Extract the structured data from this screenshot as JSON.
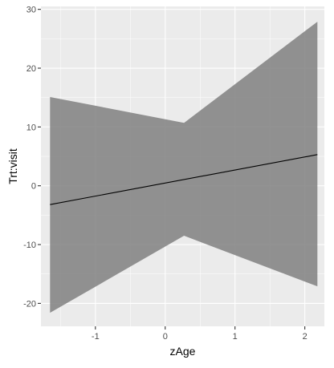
{
  "chart_data": {
    "type": "line",
    "xlabel": "zAge",
    "ylabel": "Trt:visit",
    "xlim": [
      -1.78,
      2.28
    ],
    "ylim": [
      -23.9,
      30.5
    ],
    "x_ticks": [
      -1,
      0,
      1,
      2
    ],
    "x_tick_labels": [
      "-1",
      "0",
      "1",
      "2"
    ],
    "y_ticks": [
      -20,
      -10,
      0,
      10,
      20,
      30
    ],
    "y_tick_labels": [
      "-20",
      "-10",
      "0",
      "10",
      "20",
      "30"
    ],
    "grid": true,
    "panel_background": "#ebebeb",
    "grid_color": "#ffffff",
    "line_color": "#000000",
    "ribbon_color": "#808080",
    "series": [
      {
        "x": [
          -1.65,
          2.18
        ],
        "y": [
          -3.2,
          5.3
        ]
      }
    ],
    "ribbon": {
      "x": [
        -1.65,
        0.27,
        2.18
      ],
      "upper": [
        15.1,
        10.7,
        27.9
      ],
      "lower": [
        -21.6,
        -8.5,
        -17.1
      ]
    }
  }
}
